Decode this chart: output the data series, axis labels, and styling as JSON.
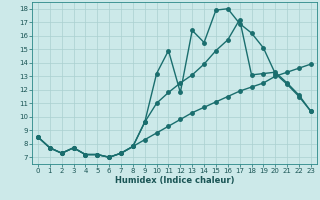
{
  "title": "",
  "xlabel": "Humidex (Indice chaleur)",
  "ylabel": "",
  "bg_color": "#cce9e9",
  "grid_color": "#aad0d0",
  "line_color": "#1a6e6e",
  "markersize": 2.5,
  "linewidth": 1.0,
  "xlim": [
    -0.5,
    23.5
  ],
  "ylim": [
    6.5,
    18.5
  ],
  "xticks": [
    0,
    1,
    2,
    3,
    4,
    5,
    6,
    7,
    8,
    9,
    10,
    11,
    12,
    13,
    14,
    15,
    16,
    17,
    18,
    19,
    20,
    21,
    22,
    23
  ],
  "yticks": [
    7,
    8,
    9,
    10,
    11,
    12,
    13,
    14,
    15,
    16,
    17,
    18
  ],
  "line1_x": [
    0,
    1,
    2,
    3,
    4,
    5,
    6,
    7,
    8,
    9,
    10,
    11,
    12,
    13,
    14,
    15,
    16,
    17,
    18,
    19,
    20,
    21,
    22,
    23
  ],
  "line1_y": [
    8.5,
    7.7,
    7.3,
    7.7,
    7.2,
    7.2,
    7.0,
    7.3,
    7.8,
    9.6,
    13.2,
    14.9,
    11.8,
    16.4,
    15.5,
    17.9,
    18.0,
    16.9,
    16.2,
    15.1,
    13.2,
    12.4,
    11.5,
    10.4
  ],
  "line2_x": [
    0,
    1,
    2,
    3,
    4,
    5,
    6,
    7,
    8,
    9,
    10,
    11,
    12,
    13,
    14,
    15,
    16,
    17,
    18,
    19,
    20,
    21,
    22,
    23
  ],
  "line2_y": [
    8.5,
    7.7,
    7.3,
    7.7,
    7.2,
    7.2,
    7.0,
    7.3,
    7.8,
    8.3,
    8.8,
    9.3,
    9.8,
    10.3,
    10.7,
    11.1,
    11.5,
    11.9,
    12.2,
    12.5,
    13.0,
    13.3,
    13.6,
    13.9
  ],
  "line3_x": [
    0,
    1,
    2,
    3,
    4,
    5,
    6,
    7,
    8,
    9,
    10,
    11,
    12,
    13,
    14,
    15,
    16,
    17,
    18,
    19,
    20,
    21,
    22,
    23
  ],
  "line3_y": [
    8.5,
    7.7,
    7.3,
    7.7,
    7.2,
    7.2,
    7.0,
    7.3,
    7.8,
    9.6,
    11.0,
    11.8,
    12.5,
    13.1,
    13.9,
    14.9,
    15.7,
    17.2,
    13.1,
    13.2,
    13.3,
    12.5,
    11.6,
    10.4
  ]
}
